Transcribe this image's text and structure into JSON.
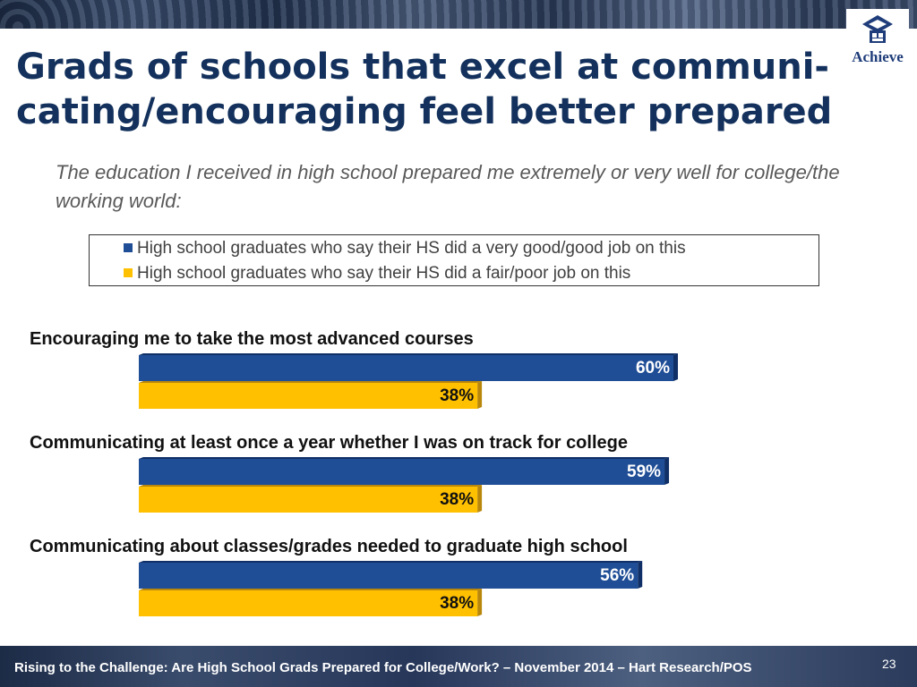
{
  "slide": {
    "title_line1": "Grads of schools that excel at communi-",
    "title_line2": "cating/encouraging feel better prepared",
    "subtitle": "The education I received in high school prepared me extremely or very well for college/the working world:",
    "logo_text": "Achieve",
    "footer": "Rising to the Challenge:  Are High School Grads Prepared for College/Work? – November 2014 – Hart Research/POS",
    "page_number": "23"
  },
  "colors": {
    "series_good": "#1f4e96",
    "series_poor": "#ffc000",
    "title": "#13315c"
  },
  "chart_data": {
    "type": "bar",
    "orientation": "horizontal",
    "value_suffix": "%",
    "xlim": [
      0,
      60
    ],
    "legend_position": "top",
    "categories": [
      "Encouraging me to take the most advanced courses",
      "Communicating at least once a year whether I was on track for college",
      "Communicating about classes/grades needed to graduate high school"
    ],
    "series": [
      {
        "name": "High school graduates who say their HS did a very good/good job on this",
        "values": [
          60,
          59,
          56
        ]
      },
      {
        "name": "High school graduates who say their HS did a fair/poor job on this",
        "values": [
          38,
          38,
          38
        ]
      }
    ]
  }
}
